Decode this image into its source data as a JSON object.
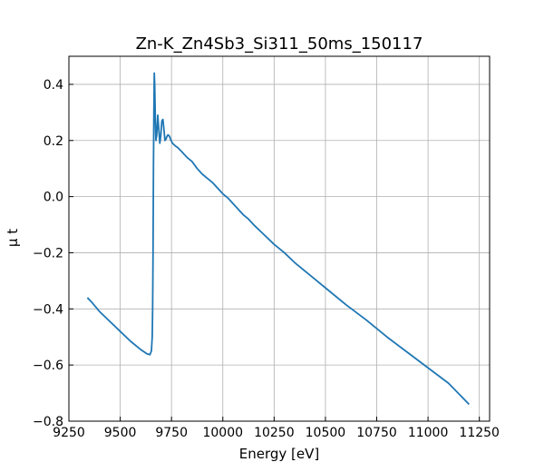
{
  "chart_data": {
    "type": "line",
    "title": "Zn-K_Zn4Sb3_Si311_50ms_150117",
    "xlabel": "Energy [eV]",
    "ylabel": "μ t",
    "xlim": [
      9250,
      11300
    ],
    "ylim": [
      -0.8,
      0.5
    ],
    "xticks": [
      9250,
      9500,
      9750,
      10000,
      10250,
      10500,
      10750,
      11000,
      11250
    ],
    "yticks": [
      -0.8,
      -0.6,
      -0.4,
      -0.2,
      0.0,
      0.2,
      0.4
    ],
    "xtick_labels": [
      "9250",
      "9500",
      "9750",
      "10000",
      "10250",
      "10500",
      "10750",
      "11000",
      "11250"
    ],
    "ytick_labels": [
      "−0.8",
      "−0.6",
      "−0.4",
      "−0.2",
      "0.0",
      "0.2",
      "0.4"
    ],
    "grid": true,
    "line_color": "#1f77b4",
    "series": [
      {
        "x": [
          9340,
          9360,
          9400,
          9450,
          9500,
          9550,
          9600,
          9630,
          9645,
          9652,
          9656,
          9658,
          9660,
          9662,
          9664,
          9666,
          9668,
          9671,
          9674,
          9678,
          9683,
          9688,
          9693,
          9698,
          9703,
          9708,
          9713,
          9718,
          9723,
          9728,
          9733,
          9740,
          9748,
          9755,
          9762,
          9770,
          9780,
          9800,
          9825,
          9850,
          9875,
          9900,
          9925,
          9950,
          9975,
          10000,
          10025,
          10050,
          10075,
          10100,
          10125,
          10150,
          10200,
          10250,
          10300,
          10350,
          10400,
          10450,
          10500,
          10600,
          10700,
          10800,
          10900,
          11000,
          11100,
          11200
        ],
        "y": [
          -0.36,
          -0.375,
          -0.41,
          -0.445,
          -0.48,
          -0.515,
          -0.545,
          -0.56,
          -0.563,
          -0.55,
          -0.5,
          -0.4,
          -0.2,
          0.1,
          0.3,
          0.44,
          0.4,
          0.28,
          0.2,
          0.22,
          0.29,
          0.24,
          0.19,
          0.22,
          0.27,
          0.275,
          0.24,
          0.2,
          0.205,
          0.215,
          0.22,
          0.215,
          0.2,
          0.19,
          0.185,
          0.18,
          0.175,
          0.16,
          0.14,
          0.125,
          0.1,
          0.08,
          0.065,
          0.05,
          0.03,
          0.01,
          -0.005,
          -0.025,
          -0.045,
          -0.065,
          -0.08,
          -0.1,
          -0.135,
          -0.17,
          -0.2,
          -0.235,
          -0.265,
          -0.295,
          -0.325,
          -0.385,
          -0.44,
          -0.5,
          -0.555,
          -0.61,
          -0.665,
          -0.74
        ]
      }
    ]
  }
}
